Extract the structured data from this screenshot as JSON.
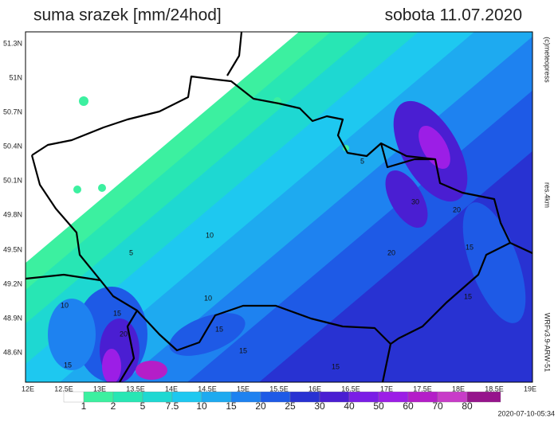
{
  "header": {
    "title": "suma srazek [mm/24hod]",
    "date": "sobota 11.07.2020"
  },
  "map": {
    "lat_labels": [
      "51.3N",
      "51N",
      "50.7N",
      "50.4N",
      "50.1N",
      "49.8N",
      "49.5N",
      "49.2N",
      "48.9N",
      "48.6N"
    ],
    "lon_labels": [
      "12E",
      "12.5E",
      "13E",
      "13.5E",
      "14E",
      "14.5E",
      "15E",
      "15.5E",
      "16E",
      "16.5E",
      "17E",
      "17.5E",
      "18E",
      "18.5E",
      "19E"
    ],
    "contour_labels": [
      "5",
      "10",
      "5",
      "15",
      "15",
      "20",
      "30",
      "20",
      "15",
      "10",
      "15",
      "15",
      "15",
      "15",
      "20",
      "10"
    ],
    "credits": [
      "(c)meteopress",
      "res.4km",
      "WRFv3.9-ARW-51"
    ]
  },
  "colorbar": {
    "labels": [
      "1",
      "2",
      "5",
      "7.5",
      "10",
      "15",
      "20",
      "25",
      "30",
      "40",
      "50",
      "60",
      "70",
      "80"
    ],
    "colors": [
      "#ffffff",
      "#3cf0a0",
      "#28e6b4",
      "#1ed8d2",
      "#1ec8f0",
      "#1eaaf0",
      "#1e82f0",
      "#1e5ae6",
      "#2832d2",
      "#4a1ed2",
      "#7a1ee6",
      "#9c1ee6",
      "#b41ec8",
      "#c83cc8",
      "#96148c"
    ]
  },
  "footer": "2020-07-10-05:34"
}
